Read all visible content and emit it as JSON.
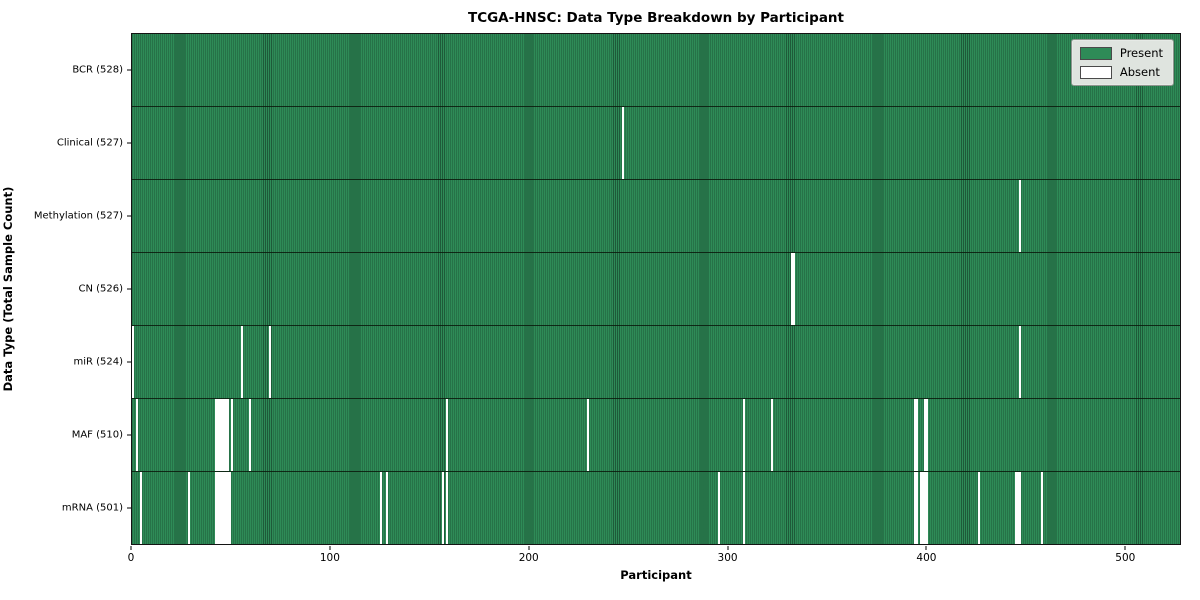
{
  "title": "TCGA-HNSC: Data Type Breakdown by Participant",
  "xlabel": "Participant",
  "ylabel": "Data Type (Total Sample Count)",
  "legend": {
    "present_label": "Present",
    "absent_label": "Absent"
  },
  "colors": {
    "present": "#2e8b57",
    "absent": "#ffffff",
    "edge": "rgba(0,0,0,0.35)"
  },
  "chart_data": {
    "type": "heatmap",
    "title": "TCGA-HNSC: Data Type Breakdown by Participant",
    "xlabel": "Participant",
    "ylabel": "Data Type (Total Sample Count)",
    "xlim": [
      0,
      528
    ],
    "n_participants": 528,
    "x_ticks": [
      0,
      100,
      200,
      300,
      400,
      500
    ],
    "legend_position": "upper right",
    "cell_states": [
      "Present",
      "Absent"
    ],
    "rows": [
      {
        "data_type": "BCR",
        "label": "BCR (528)",
        "count": 528,
        "absent": []
      },
      {
        "data_type": "Clinical",
        "label": "Clinical (527)",
        "count": 527,
        "absent": [
          247
        ]
      },
      {
        "data_type": "Methylation",
        "label": "Methylation (527)",
        "count": 527,
        "absent": [
          447
        ]
      },
      {
        "data_type": "CN",
        "label": "CN (526)",
        "count": 526,
        "absent": [
          332,
          333
        ]
      },
      {
        "data_type": "miR",
        "label": "miR (524)",
        "count": 524,
        "absent": [
          0,
          55,
          69,
          447
        ]
      },
      {
        "data_type": "MAF",
        "label": "MAF (510)",
        "count": 510,
        "absent": [
          2,
          42,
          43,
          44,
          45,
          46,
          47,
          48,
          50,
          59,
          158,
          229,
          308,
          322,
          394,
          395,
          399,
          400
        ]
      },
      {
        "data_type": "mRNA",
        "label": "mRNA (501)",
        "count": 501,
        "absent": [
          4,
          28,
          42,
          43,
          44,
          45,
          46,
          47,
          48,
          49,
          125,
          128,
          156,
          158,
          295,
          308,
          394,
          395,
          397,
          398,
          399,
          400,
          426,
          445,
          446,
          447,
          458
        ]
      }
    ]
  }
}
